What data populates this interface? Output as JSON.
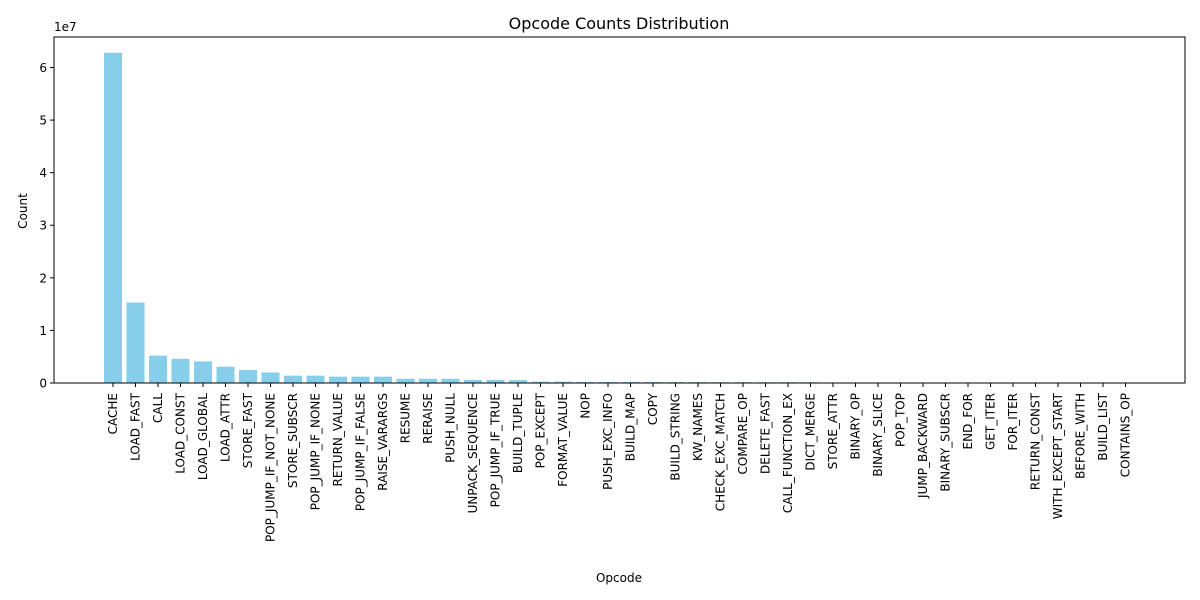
{
  "chart_data": {
    "type": "bar",
    "title": "Opcode Counts Distribution",
    "xlabel": "Opcode",
    "ylabel": "Count",
    "y_offset_label": "1e7",
    "y_scale": 10000000,
    "ylim": [
      0,
      65800000
    ],
    "y_ticks": [
      0,
      10000000,
      20000000,
      30000000,
      40000000,
      50000000,
      60000000
    ],
    "y_tick_labels": [
      "0",
      "1",
      "2",
      "3",
      "4",
      "5",
      "6"
    ],
    "bar_color": "#87ceeb",
    "grid": false,
    "categories": [
      "CACHE",
      "LOAD_FAST",
      "CALL",
      "LOAD_CONST",
      "LOAD_GLOBAL",
      "LOAD_ATTR",
      "STORE_FAST",
      "POP_JUMP_IF_NOT_NONE",
      "STORE_SUBSCR",
      "POP_JUMP_IF_NONE",
      "RETURN_VALUE",
      "POP_JUMP_IF_FALSE",
      "RAISE_VARARGS",
      "RESUME",
      "RERAISE",
      "PUSH_NULL",
      "UNPACK_SEQUENCE",
      "POP_JUMP_IF_TRUE",
      "BUILD_TUPLE",
      "POP_EXCEPT",
      "FORMAT_VALUE",
      "NOP",
      "PUSH_EXC_INFO",
      "BUILD_MAP",
      "COPY",
      "BUILD_STRING",
      "KW_NAMES",
      "CHECK_EXC_MATCH",
      "COMPARE_OP",
      "DELETE_FAST",
      "CALL_FUNCTION_EX",
      "DICT_MERGE",
      "STORE_ATTR",
      "BINARY_OP",
      "BINARY_SLICE",
      "POP_TOP",
      "JUMP_BACKWARD",
      "BINARY_SUBSCR",
      "END_FOR",
      "GET_ITER",
      "FOR_ITER",
      "RETURN_CONST",
      "WITH_EXCEPT_START",
      "BEFORE_WITH",
      "BUILD_LIST",
      "CONTAINS_OP"
    ],
    "values": [
      62800000,
      15300000,
      5200000,
      4600000,
      4100000,
      3100000,
      2500000,
      2000000,
      1400000,
      1400000,
      1200000,
      1200000,
      1200000,
      800000,
      800000,
      800000,
      600000,
      600000,
      550000,
      250000,
      250000,
      200000,
      200000,
      200000,
      200000,
      180000,
      180000,
      150000,
      150000,
      150000,
      150000,
      150000,
      50000,
      40000,
      30000,
      30000,
      30000,
      20000,
      20000,
      20000,
      20000,
      20000,
      10000,
      10000,
      10000,
      5000
    ]
  }
}
